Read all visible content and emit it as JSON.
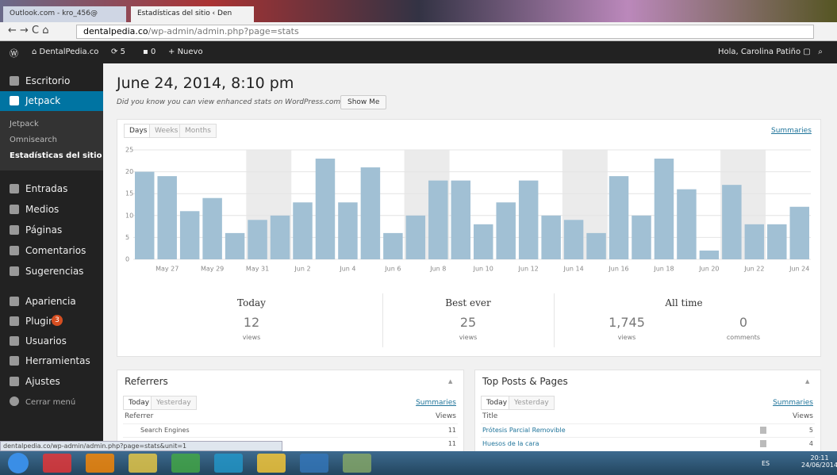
{
  "browser": {
    "tabs": [
      "Outlook.com - kro_456@",
      "Estadísticas del sitio ‹ Den"
    ],
    "url_host": "dentalpedia.co",
    "url_path": "/wp-admin/admin.php?page=stats"
  },
  "admin_bar": {
    "site": "DentalPedia.co",
    "updates": "5",
    "comments": "0",
    "new": "Nuevo",
    "greeting": "Hola, Carolina Patiño"
  },
  "sidebar": {
    "top": [
      "Escritorio",
      "Jetpack"
    ],
    "submenu": [
      "Jetpack",
      "Omnisearch",
      "Estadísticas del sitio"
    ],
    "group1": [
      "Entradas",
      "Medios",
      "Páginas",
      "Comentarios",
      "Sugerencias"
    ],
    "group2": [
      "Apariencia",
      "Plugins",
      "Usuarios",
      "Herramientas",
      "Ajustes"
    ],
    "plugins_badge": "3",
    "collapse": "Cerrar menú"
  },
  "header": {
    "title": "June 24, 2014, 8:10 pm",
    "notice": "Did you know you can view enhanced stats on WordPress.com?",
    "button": "Show Me"
  },
  "chart_panel": {
    "tabs": [
      "Days",
      "Weeks",
      "Months"
    ],
    "summaries": "Summaries"
  },
  "chart_data": {
    "type": "bar",
    "color": "#a1c0d4",
    "categories": [
      null,
      "May 27",
      null,
      "May 29",
      null,
      "May 31",
      null,
      "Jun 2",
      null,
      "Jun 4",
      null,
      "Jun 6",
      null,
      "Jun 8",
      null,
      "Jun 10",
      null,
      "Jun 12",
      null,
      "Jun 14",
      null,
      "Jun 16",
      null,
      "Jun 18",
      null,
      "Jun 20",
      null,
      "Jun 22",
      null,
      "Jun 24"
    ],
    "values": [
      20,
      19,
      11,
      14,
      6,
      9,
      10,
      13,
      23,
      13,
      21,
      6,
      10,
      18,
      18,
      8,
      13,
      18,
      10,
      9,
      6,
      19,
      10,
      23,
      16,
      2,
      17,
      8,
      8,
      12
    ],
    "ylim": [
      0,
      25
    ],
    "yticks": [
      0,
      5,
      10,
      15,
      20,
      25
    ],
    "grid": true
  },
  "summary": {
    "today": {
      "label": "Today",
      "value": "12",
      "unit": "views"
    },
    "best": {
      "label": "Best ever",
      "value": "25",
      "unit": "views"
    },
    "all_time": {
      "label": "All time",
      "views": {
        "value": "1,745",
        "unit": "views"
      },
      "comments": {
        "value": "0",
        "unit": "comments"
      }
    }
  },
  "referrers": {
    "title": "Referrers",
    "tabs": [
      "Today",
      "Yesterday"
    ],
    "summaries": "Summaries",
    "columns": [
      "Referrer",
      "Views"
    ],
    "rows": [
      [
        "Search Engines",
        "11"
      ],
      [
        "",
        "11"
      ]
    ]
  },
  "top_posts": {
    "title": "Top Posts & Pages",
    "tabs": [
      "Today",
      "Yesterday"
    ],
    "summaries": "Summaries",
    "columns": [
      "Title",
      "Views"
    ],
    "rows": [
      [
        "Prótesis Parcial Removible",
        "5"
      ],
      [
        "Huesos de la cara",
        "4"
      ]
    ]
  },
  "status_bar": "dentalpedia.co/wp-admin/admin.php?page=stats&unit=1",
  "taskbar": {
    "lang": "ES",
    "time": "20:11",
    "date": "24/06/2014"
  }
}
